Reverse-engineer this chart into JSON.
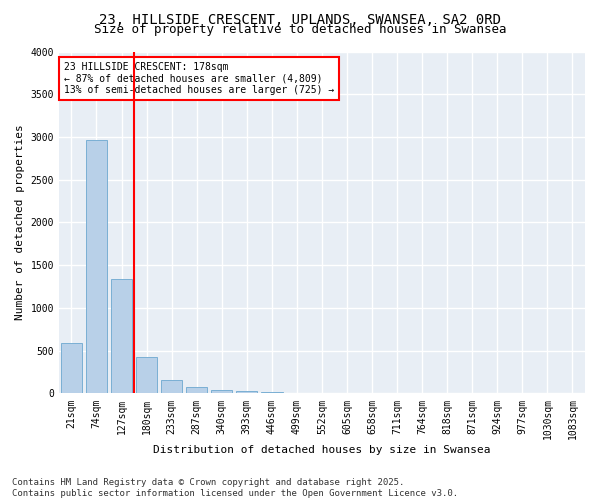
{
  "title": "23, HILLSIDE CRESCENT, UPLANDS, SWANSEA, SA2 0RD",
  "subtitle": "Size of property relative to detached houses in Swansea",
  "xlabel": "Distribution of detached houses by size in Swansea",
  "ylabel": "Number of detached properties",
  "categories": [
    "21sqm",
    "74sqm",
    "127sqm",
    "180sqm",
    "233sqm",
    "287sqm",
    "340sqm",
    "393sqm",
    "446sqm",
    "499sqm",
    "552sqm",
    "605sqm",
    "658sqm",
    "711sqm",
    "764sqm",
    "818sqm",
    "871sqm",
    "924sqm",
    "977sqm",
    "1030sqm",
    "1083sqm"
  ],
  "values": [
    590,
    2970,
    1340,
    430,
    155,
    75,
    45,
    30,
    15,
    0,
    0,
    0,
    0,
    0,
    0,
    0,
    0,
    0,
    0,
    0,
    0
  ],
  "bar_color": "#b8d0e8",
  "bar_edge_color": "#7aafd4",
  "vline_position": 2.5,
  "vline_color": "red",
  "annotation_text": "23 HILLSIDE CRESCENT: 178sqm\n← 87% of detached houses are smaller (4,809)\n13% of semi-detached houses are larger (725) →",
  "annotation_box_facecolor": "white",
  "annotation_box_edgecolor": "red",
  "ylim": [
    0,
    4000
  ],
  "yticks": [
    0,
    500,
    1000,
    1500,
    2000,
    2500,
    3000,
    3500,
    4000
  ],
  "plot_bg_color": "#e8eef5",
  "figure_bg_color": "#ffffff",
  "grid_color": "#ffffff",
  "title_fontsize": 10,
  "subtitle_fontsize": 9,
  "axis_label_fontsize": 8,
  "tick_fontsize": 7,
  "footnote": "Contains HM Land Registry data © Crown copyright and database right 2025.\nContains public sector information licensed under the Open Government Licence v3.0.",
  "footnote_fontsize": 6.5
}
